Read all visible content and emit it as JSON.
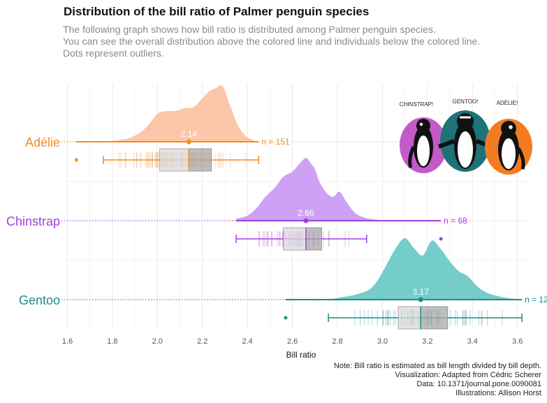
{
  "title": "Distribution of the bill ratio of Palmer penguin species",
  "subtitle": [
    "The following graph shows how bill ratio is distributed among Palmer penguin species.",
    "You can see the overall distribution above the colored line and individuals below the colored line.",
    "Dots represent outliers."
  ],
  "caption": [
    "Note: Bill ratio is estimated as bill length divided by bill depth.",
    "Visualization: Adapted from Cédric Scherer",
    "Data: 10.1371/journal.pone.0090081",
    "Illustrations: Allison Horst"
  ],
  "illustration": {
    "labels": [
      "CHINSTRAP!",
      "GENTOO!",
      "ADÉLIE!"
    ],
    "colors": [
      "#c45ac8",
      "#1d7377",
      "#f47c20"
    ]
  },
  "chart_data": {
    "type": "raincloud",
    "xlabel": "Bill ratio",
    "xlim": [
      1.58,
      3.66
    ],
    "xticks": [
      1.6,
      1.8,
      2.0,
      2.2,
      2.4,
      2.6,
      2.8,
      3.0,
      3.2,
      3.4,
      3.6
    ],
    "xtick_labels": [
      "1.6",
      "1.8",
      "2.0",
      "2.2",
      "2.4",
      "2.6",
      "2.8",
      "3.0",
      "3.2",
      "3.4",
      "3.6"
    ],
    "species": [
      {
        "name": "Adélie",
        "color": "#f28c28",
        "fill": "#fcc6a8",
        "n_label": "n = 151",
        "median": 2.14,
        "median_label": "2.14",
        "range": [
          1.64,
          2.45
        ],
        "q1": 2.01,
        "q3": 2.24,
        "whiskers": [
          1.76,
          2.45
        ],
        "outliers": [
          1.64
        ],
        "density": {
          "x": [
            1.76,
            1.86,
            1.92,
            1.96,
            2.0,
            2.04,
            2.08,
            2.12,
            2.16,
            2.2,
            2.23,
            2.26,
            2.29,
            2.32,
            2.36,
            2.4,
            2.45
          ],
          "y": [
            0.0,
            0.05,
            0.16,
            0.3,
            0.5,
            0.55,
            0.55,
            0.6,
            0.62,
            0.78,
            0.9,
            0.96,
            1.0,
            0.68,
            0.28,
            0.08,
            0.0
          ]
        }
      },
      {
        "name": "Chinstrap",
        "color": "#a43de0",
        "fill": "#cda1f5",
        "n_label": "n = 68",
        "median": 2.66,
        "median_label": "2.66",
        "range": [
          2.35,
          3.26
        ],
        "q1": 2.56,
        "q3": 2.73,
        "whiskers": [
          2.35,
          2.93
        ],
        "outliers": [
          3.26
        ],
        "density": {
          "x": [
            2.35,
            2.4,
            2.44,
            2.48,
            2.52,
            2.56,
            2.6,
            2.63,
            2.66,
            2.68,
            2.7,
            2.72,
            2.75,
            2.78,
            2.81,
            2.84,
            2.88,
            2.93,
            3.0,
            3.1,
            3.26
          ],
          "y": [
            0.03,
            0.08,
            0.2,
            0.38,
            0.52,
            0.7,
            0.78,
            0.9,
            1.0,
            0.92,
            0.82,
            0.62,
            0.45,
            0.38,
            0.46,
            0.3,
            0.12,
            0.04,
            0.01,
            0.0,
            0.0
          ]
        }
      },
      {
        "name": "Gentoo",
        "color": "#1d8a8a",
        "fill": "#74cdca",
        "n_label": "n = 12",
        "median": 3.17,
        "median_label": "3.17",
        "range": [
          2.57,
          3.62
        ],
        "q1": 3.07,
        "q3": 3.29,
        "whiskers": [
          2.76,
          3.62
        ],
        "outliers": [
          2.57
        ],
        "density": {
          "x": [
            2.76,
            2.82,
            2.88,
            2.94,
            2.98,
            3.02,
            3.06,
            3.1,
            3.14,
            3.18,
            3.22,
            3.26,
            3.3,
            3.34,
            3.38,
            3.42,
            3.46,
            3.5,
            3.55,
            3.62
          ],
          "y": [
            0.0,
            0.04,
            0.08,
            0.16,
            0.32,
            0.58,
            0.84,
            1.0,
            0.84,
            0.72,
            0.96,
            0.82,
            0.62,
            0.46,
            0.38,
            0.22,
            0.12,
            0.07,
            0.03,
            0.0
          ]
        }
      }
    ]
  }
}
